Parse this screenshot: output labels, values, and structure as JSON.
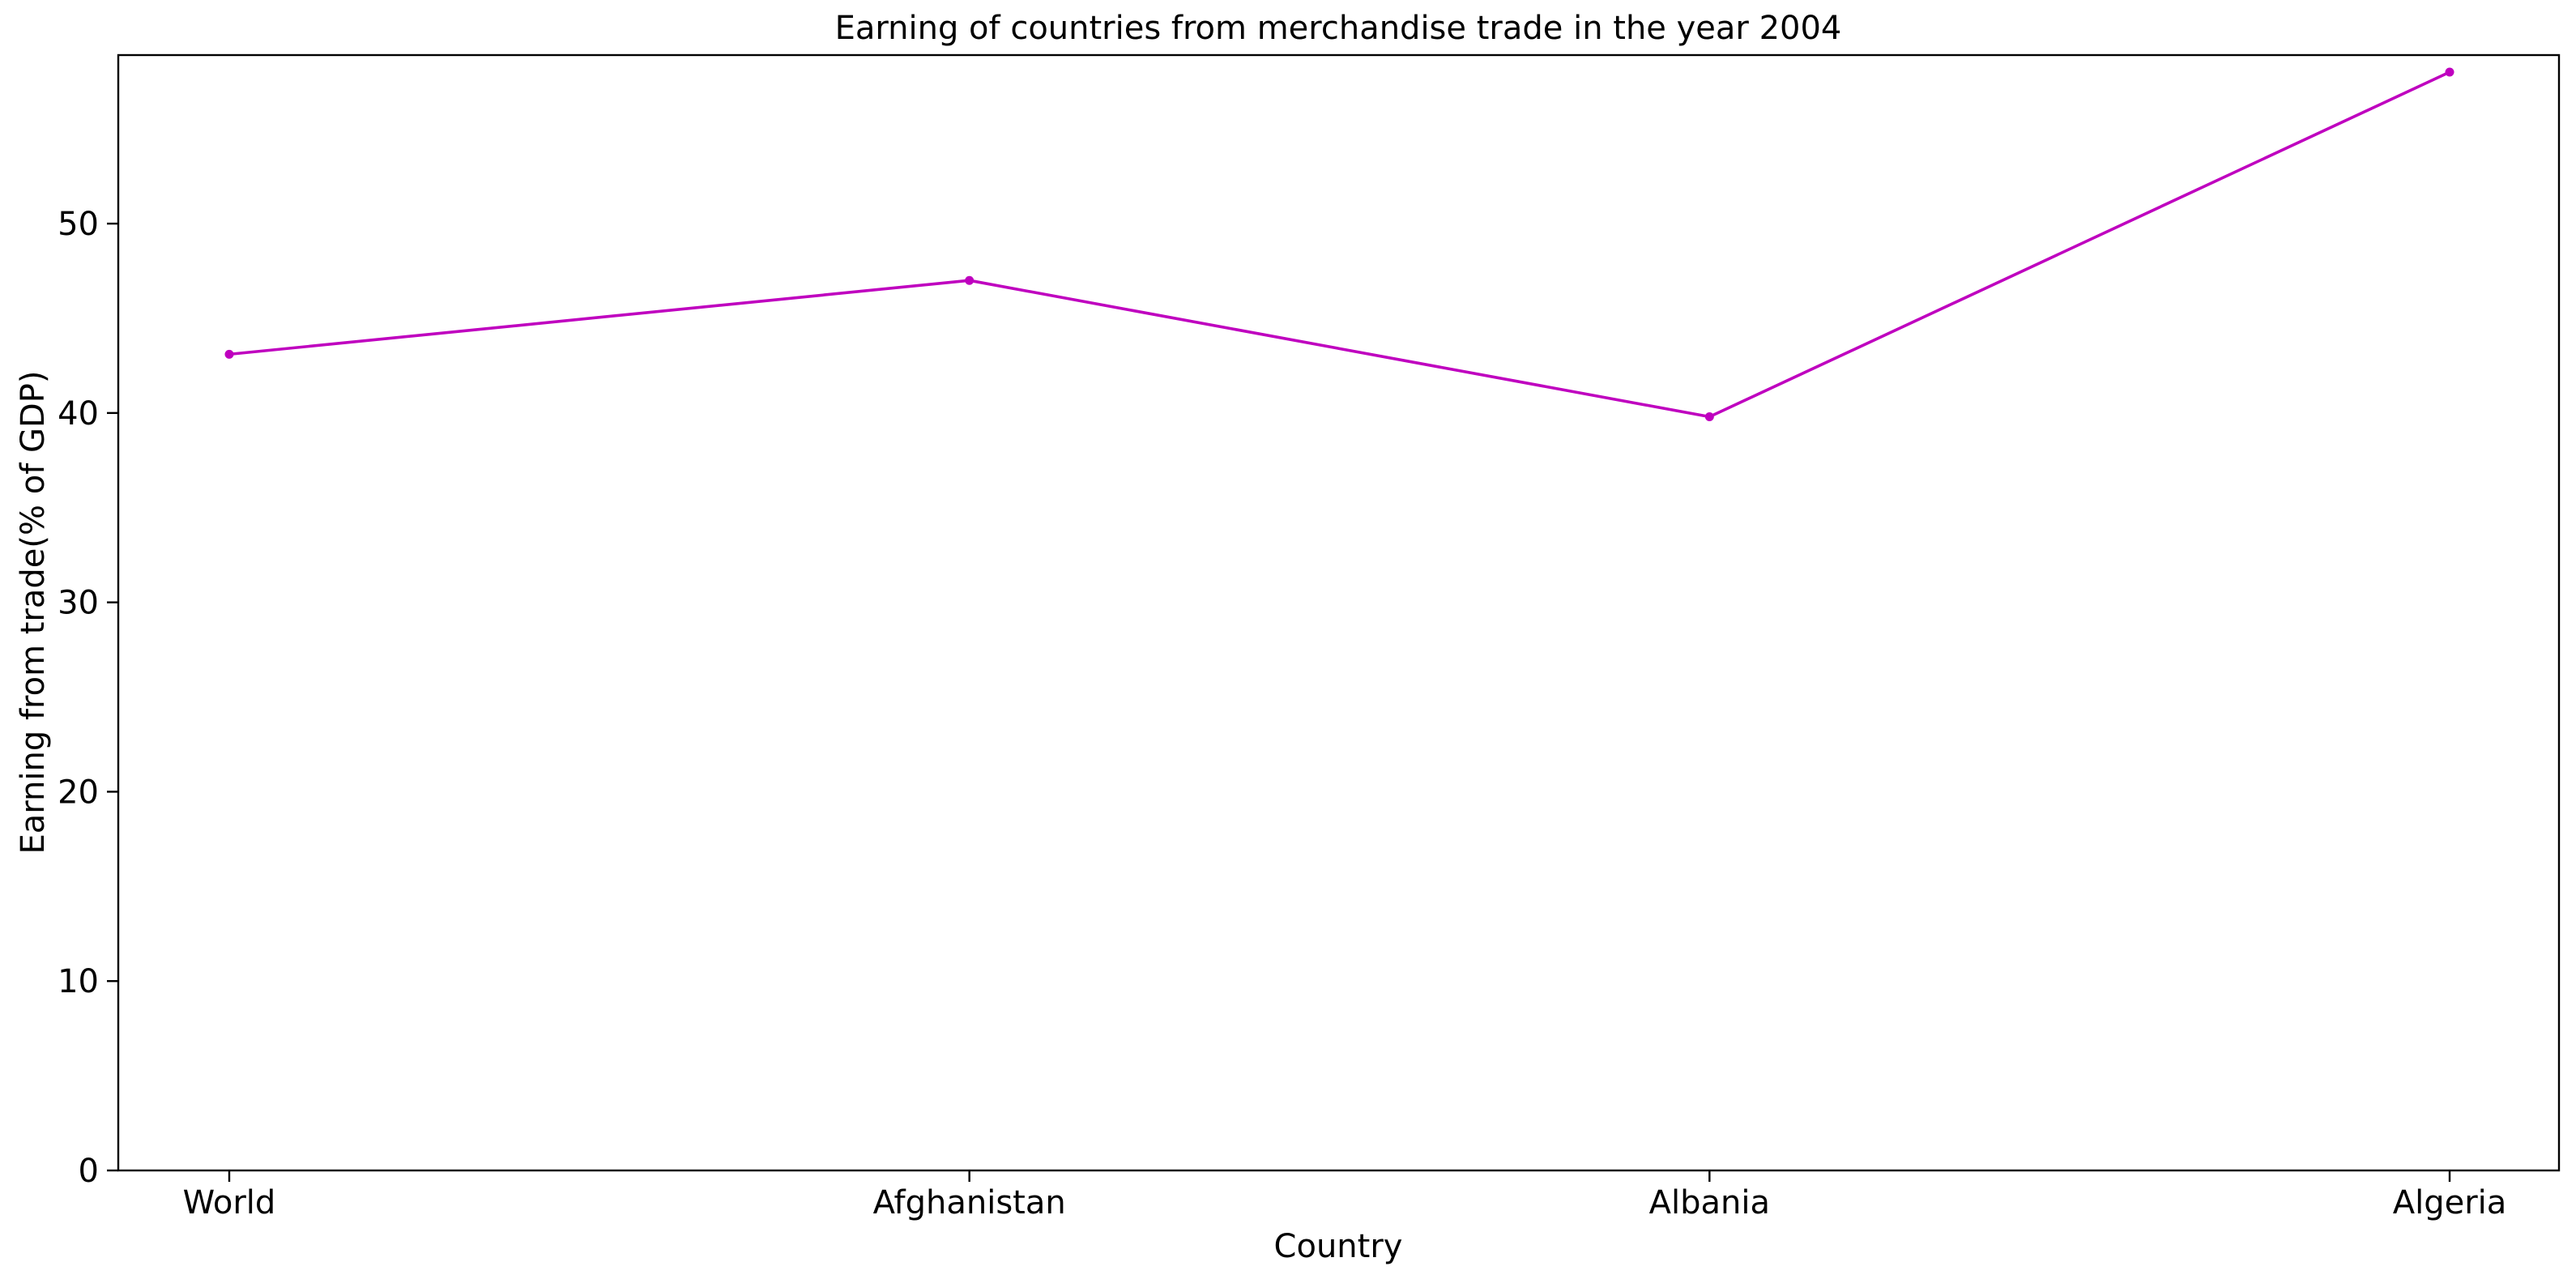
{
  "chart_data": {
    "type": "line",
    "title": "Earning of countries from merchandise trade in the year 2004",
    "xlabel": "Country",
    "ylabel": "Earning from trade(% of GDP)",
    "categories": [
      "World",
      "Afghanistan",
      "Albania",
      "Algeria"
    ],
    "series": [
      {
        "values": [
          43.1,
          47.0,
          39.8,
          58.0
        ],
        "color": "#bf00bf",
        "marker": "dot"
      }
    ],
    "ylim": [
      0,
      58.9
    ],
    "yticks": [
      0,
      10,
      20,
      30,
      40,
      50
    ],
    "grid": false,
    "legend": "none"
  }
}
